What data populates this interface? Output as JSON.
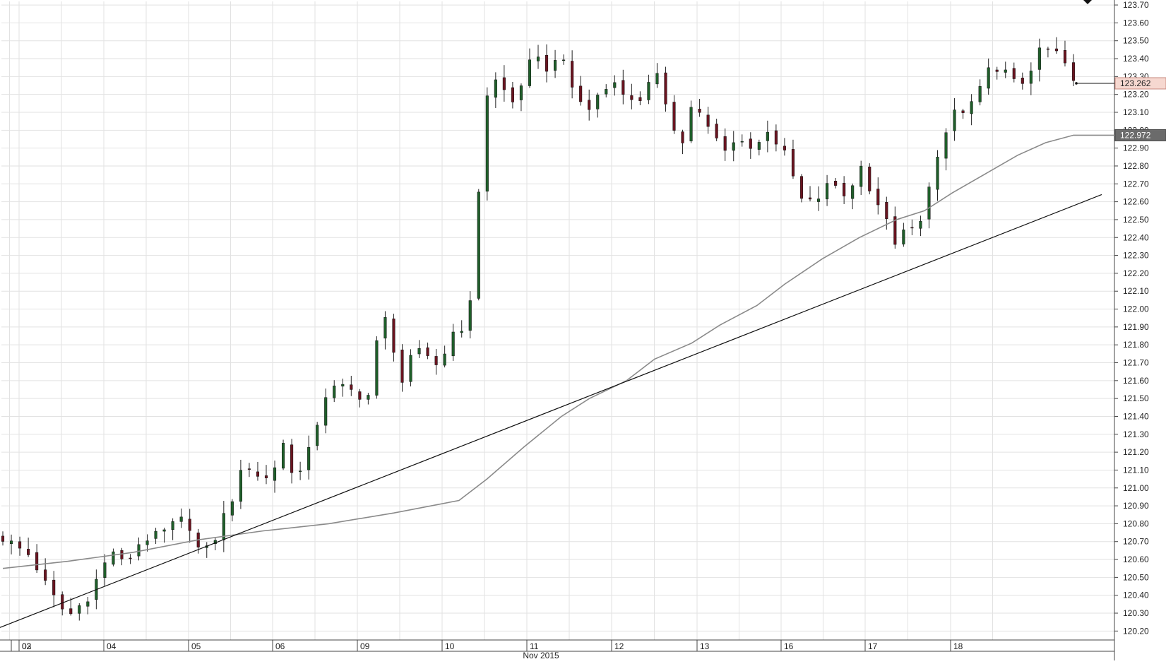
{
  "chart_data": {
    "type": "candlestick",
    "month_label": "Nov 2015",
    "y_axis": {
      "min": 120.15,
      "max": 123.72,
      "ticks": [
        "120.20",
        "120.30",
        "120.40",
        "120.50",
        "120.60",
        "120.70",
        "120.80",
        "120.90",
        "121.00",
        "121.10",
        "121.20",
        "121.30",
        "121.40",
        "121.50",
        "121.60",
        "121.70",
        "121.80",
        "121.90",
        "122.00",
        "122.10",
        "122.20",
        "122.30",
        "122.40",
        "122.50",
        "122.60",
        "122.70",
        "122.80",
        "122.90",
        "123.00",
        "123.10",
        "123.20",
        "123.30",
        "123.40",
        "123.50",
        "123.60",
        "123.70"
      ]
    },
    "x_axis": {
      "day_labels": [
        "02",
        "03",
        "04",
        "05",
        "06",
        "09",
        "10",
        "11",
        "12",
        "13",
        "16",
        "17",
        "18"
      ]
    },
    "price_badges": {
      "last_price": "123.262",
      "moving_average": "122.972"
    },
    "colors": {
      "grid": "#e2e2e2",
      "up_candle": "#1f5f2a",
      "down_candle": "#6a1420",
      "wick": "#222222",
      "moving_average": "#8a8a8a",
      "trendline": "#111111",
      "last_price_badge": "#f6d8d0",
      "ma_badge": "#6b6b6b"
    },
    "close_path": [
      [
        0,
        120.72
      ],
      [
        3,
        120.62
      ],
      [
        5,
        120.42
      ],
      [
        7,
        120.28
      ],
      [
        9,
        120.38
      ],
      [
        11,
        120.58
      ],
      [
        12,
        120.66
      ],
      [
        13,
        120.56
      ],
      [
        15,
        120.72
      ],
      [
        16,
        120.72
      ],
      [
        17,
        120.74
      ],
      [
        19,
        120.82
      ],
      [
        20,
        120.8
      ],
      [
        21,
        120.66
      ],
      [
        22,
        120.65
      ],
      [
        23,
        120.74
      ],
      [
        24,
        120.88
      ],
      [
        25,
        120.98
      ],
      [
        26,
        121.15
      ],
      [
        28,
        121.04
      ],
      [
        29,
        121.08
      ],
      [
        30,
        121.28
      ],
      [
        31,
        121.08
      ],
      [
        32,
        121.12
      ],
      [
        34,
        121.35
      ],
      [
        35,
        121.6
      ],
      [
        37,
        121.55
      ],
      [
        38,
        121.5
      ],
      [
        39,
        121.46
      ],
      [
        40,
        121.8
      ],
      [
        41,
        121.95
      ],
      [
        42,
        121.74
      ],
      [
        43,
        121.6
      ],
      [
        44,
        121.78
      ],
      [
        46,
        121.7
      ],
      [
        47,
        121.68
      ],
      [
        48,
        121.85
      ],
      [
        49,
        121.91
      ],
      [
        50,
        121.88
      ],
      [
        51,
        122.6
      ],
      [
        52,
        123.2
      ],
      [
        53,
        123.28
      ],
      [
        55,
        123.14
      ],
      [
        56,
        123.32
      ],
      [
        57,
        123.4
      ],
      [
        59,
        123.33
      ],
      [
        60,
        123.48
      ],
      [
        61,
        123.22
      ],
      [
        62,
        123.16
      ],
      [
        63,
        123.12
      ],
      [
        64,
        123.2
      ],
      [
        66,
        123.28
      ],
      [
        68,
        123.12
      ],
      [
        69,
        123.24
      ],
      [
        70,
        123.36
      ],
      [
        71,
        123.14
      ],
      [
        72,
        123.02
      ],
      [
        73,
        122.95
      ],
      [
        74,
        123.14
      ],
      [
        75,
        123.1
      ],
      [
        76,
        122.98
      ],
      [
        77,
        122.92
      ],
      [
        78,
        122.85
      ],
      [
        79,
        123.0
      ],
      [
        80,
        122.9
      ],
      [
        81,
        122.9
      ],
      [
        82,
        123.02
      ],
      [
        84,
        122.86
      ],
      [
        85,
        122.72
      ],
      [
        86,
        122.58
      ],
      [
        87,
        122.6
      ],
      [
        88,
        122.64
      ],
      [
        89,
        122.72
      ],
      [
        90,
        122.66
      ],
      [
        91,
        122.62
      ],
      [
        92,
        122.86
      ],
      [
        93,
        122.68
      ],
      [
        94,
        122.56
      ],
      [
        95,
        122.52
      ],
      [
        96,
        122.3
      ],
      [
        97,
        122.48
      ],
      [
        98,
        122.42
      ],
      [
        100,
        122.76
      ],
      [
        101,
        122.92
      ],
      [
        102,
        123.12
      ],
      [
        103,
        123.08
      ],
      [
        105,
        123.22
      ],
      [
        106,
        123.34
      ],
      [
        107,
        123.36
      ],
      [
        108,
        123.3
      ],
      [
        109,
        123.24
      ],
      [
        110,
        123.3
      ],
      [
        111,
        123.42
      ],
      [
        112,
        123.45
      ],
      [
        113,
        123.44
      ],
      [
        114,
        123.38
      ],
      [
        115,
        123.262
      ]
    ],
    "moving_average_path": [
      [
        0,
        120.55
      ],
      [
        7,
        120.59
      ],
      [
        14,
        120.64
      ],
      [
        21,
        120.71
      ],
      [
        28,
        120.76
      ],
      [
        35,
        120.8
      ],
      [
        42,
        120.86
      ],
      [
        49,
        120.93
      ],
      [
        52,
        121.05
      ],
      [
        56,
        121.23
      ],
      [
        60,
        121.4
      ],
      [
        63,
        121.5
      ],
      [
        67,
        121.6
      ],
      [
        70,
        121.72
      ],
      [
        74,
        121.81
      ],
      [
        77,
        121.91
      ],
      [
        81,
        122.02
      ],
      [
        84,
        122.14
      ],
      [
        88,
        122.28
      ],
      [
        92,
        122.4
      ],
      [
        96,
        122.5
      ],
      [
        99,
        122.55
      ],
      [
        102,
        122.65
      ],
      [
        106,
        122.77
      ],
      [
        109,
        122.86
      ],
      [
        112,
        122.93
      ],
      [
        115,
        122.972
      ],
      [
        121,
        122.972
      ]
    ],
    "trendline": [
      [
        0,
        120.22
      ],
      [
        127,
        122.64
      ]
    ]
  }
}
